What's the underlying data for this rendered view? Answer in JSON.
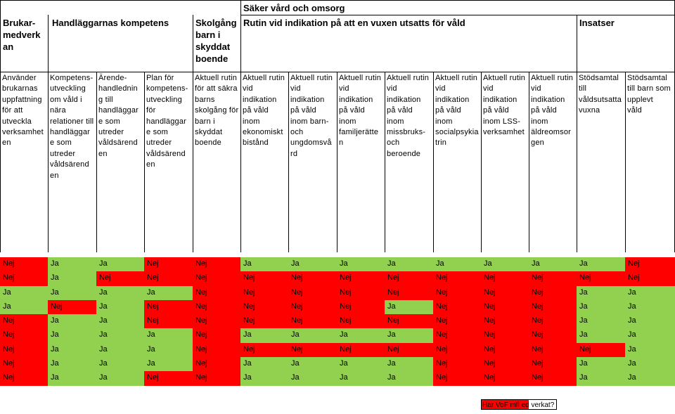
{
  "header": {
    "safe_care_title": "Säker vård och omsorg",
    "user_participation": "Brukar-\nmedverk\nan",
    "staff_competence": "Handläggarnas kompetens",
    "protected_housing": "Skolgång\nbarn i\nskyddat\nboende",
    "routine_title": "Rutin vid indikation på att en vuxen utsatts för våld",
    "interventions": "Insatser"
  },
  "columns": [
    "Använder\nbrukarnas\nuppfattning\nför att\nutveckla\nverksamhet\nen",
    "Kompetens-\nutveckling\nom våld i\nnära\nrelationer till\nhandläggar\ne som\nutreder\nvåldsärend\nen",
    "Ärende-\nhandlednin\ng till\nhandläggar\ne som\nutreder\nvåldsärend\nen",
    "Plan för\nkompetens-\nutveckling\nför\nhandläggar\ne som\nutreder\nvåldsärend\nen",
    "Aktuell rutin\nför att säkra\nbarns\nskolgång för\nbarn i\nskyddat\nboende",
    "Aktuell rutin\nvid\nindikation\npå våld\ninom\nekonomiskt\nbistånd",
    "Aktuell rutin\nvid\nindikation\npå våld\ninom barn-\noch\nungdomsvå\nrd",
    "Aktuell rutin\nvid\nindikation\npå våld\ninom\nfamiljerätte\nn",
    "Aktuell rutin\nvid\nindikation\npå våld\ninom\nmissbruks-\noch\nberoende",
    "Aktuell rutin\nvid\nindikation\npå våld\ninom\nsocialpsykia\ntrin",
    "Aktuell rutin\nvid\nindikation\npå våld\ninom LSS-\nverksamhet",
    "Aktuell rutin\nvid\nindikation\npå våld\ninom\näldreomsor\ngen",
    "Stödsamtal\ntill\nvåldsutsatta\nvuxna",
    "Stödsamtal\ntill barn som\nupplevt\nvåld"
  ],
  "rows": [
    [
      "Nej",
      "Ja",
      "Ja",
      "Nej",
      "Nej",
      "Ja",
      "Ja",
      "Ja",
      "Ja",
      "Ja",
      "Ja",
      "Ja",
      "Ja",
      "Nej"
    ],
    [
      "Nej",
      "Ja",
      "Nej",
      "Nej",
      "Nej",
      "Nej",
      "Nej",
      "Nej",
      "Nej",
      "Nej",
      "Nej",
      "Nej",
      "Nej",
      "Nej"
    ],
    [
      "Ja",
      "Ja",
      "Ja",
      "Ja",
      "Nej",
      "Nej",
      "Nej",
      "Nej",
      "Nej",
      "Nej",
      "Nej",
      "Nej",
      "Ja",
      "Ja"
    ],
    [
      "Ja",
      "Nej",
      "Ja",
      "Nej",
      "Nej",
      "Nej",
      "Nej",
      "Nej",
      "Ja",
      "Nej",
      "Nej",
      "Nej",
      "Ja",
      "Ja"
    ],
    [
      "Nej",
      "Ja",
      "Ja",
      "Nej",
      "Nej",
      "Nej",
      "Nej",
      "Nej",
      "Nej",
      "Nej",
      "Nej",
      "Nej",
      "Ja",
      "Ja"
    ],
    [
      "Nej",
      "Ja",
      "Ja",
      "Ja",
      "Nej",
      "Ja",
      "Ja",
      "Ja",
      "Ja",
      "Nej",
      "Nej",
      "Nej",
      "Ja",
      "Ja"
    ],
    [
      "Nej",
      "Ja",
      "Ja",
      "Ja",
      "Nej",
      "Nej",
      "Nej",
      "Nej",
      "Nej",
      "Nej",
      "Nej",
      "Nej",
      "Nej",
      "Ja"
    ],
    [
      "Nej",
      "Ja",
      "Ja",
      "Ja",
      "Nej",
      "Ja",
      "Ja",
      "Ja",
      "Ja",
      "Nej",
      "Nej",
      "Nej",
      "Ja",
      "Ja"
    ],
    [
      "Nej",
      "Ja",
      "Ja",
      "Nej",
      "Nej",
      "Ja",
      "Ja",
      "Ja",
      "Ja",
      "Nej",
      "Nej",
      "Nej",
      "Ja",
      "Ja"
    ]
  ],
  "colors": {
    "ja": "#92d050",
    "nej": "#ff0000"
  },
  "legend": {
    "text": "Har VoF mfl ed verkat?"
  }
}
